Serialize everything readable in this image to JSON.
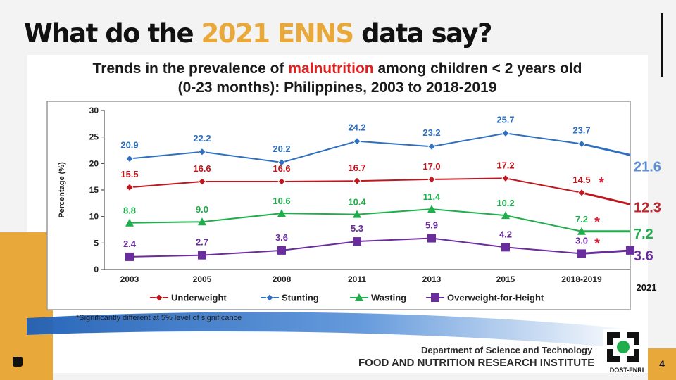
{
  "slide": {
    "title_prefix": "What do the ",
    "title_highlight": "2021 ENNS",
    "title_suffix": " data say?",
    "page_number": "4",
    "footer_dept": "Department of Science and Technology",
    "footer_institute": "FOOD AND NUTRITION RESEARCH INSTITUTE",
    "logo_text": "DOST-FNRI",
    "colors": {
      "accent": "#e9a93a",
      "title": "#111111"
    }
  },
  "chart_data": {
    "type": "line",
    "title_line1_prefix": "Trends in the prevalence of ",
    "title_line1_highlight": "malnutrition",
    "title_line1_suffix": " among children < 2 years old",
    "title_line2": "(0-23 months): Philippines, 2003 to 2018-2019",
    "ylabel": "Percentage (%)",
    "ylim": [
      0,
      30
    ],
    "yticks": [
      0,
      5,
      10,
      15,
      20,
      25,
      30
    ],
    "categories": [
      "2003",
      "2005",
      "2008",
      "2011",
      "2013",
      "2015",
      "2018-2019"
    ],
    "extra_category": "2021",
    "grid": false,
    "legend_position": "bottom",
    "series": [
      {
        "name": "Underweight",
        "color": "#c0161d",
        "marker": "diamond",
        "values": [
          15.5,
          16.6,
          16.6,
          16.7,
          17.0,
          17.2,
          14.5
        ],
        "labels": [
          "15.5",
          "16.6",
          "16.6",
          "16.7",
          "17.0",
          "17.2",
          "14.5"
        ],
        "value_2021": 12.3,
        "label_2021": "12.3",
        "label_2021_color": "#c0262b"
      },
      {
        "name": "Stunting",
        "color": "#2f6fbf",
        "marker": "diamond",
        "values": [
          20.9,
          22.2,
          20.2,
          24.2,
          23.2,
          25.7,
          23.7
        ],
        "labels": [
          "20.9",
          "22.2",
          "20.2",
          "24.2",
          "23.2",
          "25.7",
          "23.7"
        ],
        "value_2021": 21.6,
        "label_2021": "21.6",
        "label_2021_color": "#5b8fd6"
      },
      {
        "name": "Wasting",
        "color": "#1fae4b",
        "marker": "triangle",
        "values": [
          8.8,
          9.0,
          10.6,
          10.4,
          11.4,
          10.2,
          7.2
        ],
        "labels": [
          "8.8",
          "9.0",
          "10.6",
          "10.4",
          "11.4",
          "10.2",
          "7.2"
        ],
        "value_2021": 7.2,
        "label_2021": "7.2",
        "label_2021_color": "#1fae4b"
      },
      {
        "name": "Overweight-for-Height",
        "color": "#6a2d9e",
        "marker": "square",
        "values": [
          2.4,
          2.7,
          3.6,
          5.3,
          5.9,
          4.2,
          3.0
        ],
        "labels": [
          "2.4",
          "2.7",
          "3.6",
          "5.3",
          "5.9",
          "4.2",
          "3.0"
        ],
        "value_2021": 3.6,
        "label_2021": "3.6",
        "label_2021_color": "#6a2d9e"
      }
    ],
    "significance_marker": "*",
    "significance_color": "#e0203a",
    "footnote": "*Significantly different at 5% level of significance"
  }
}
